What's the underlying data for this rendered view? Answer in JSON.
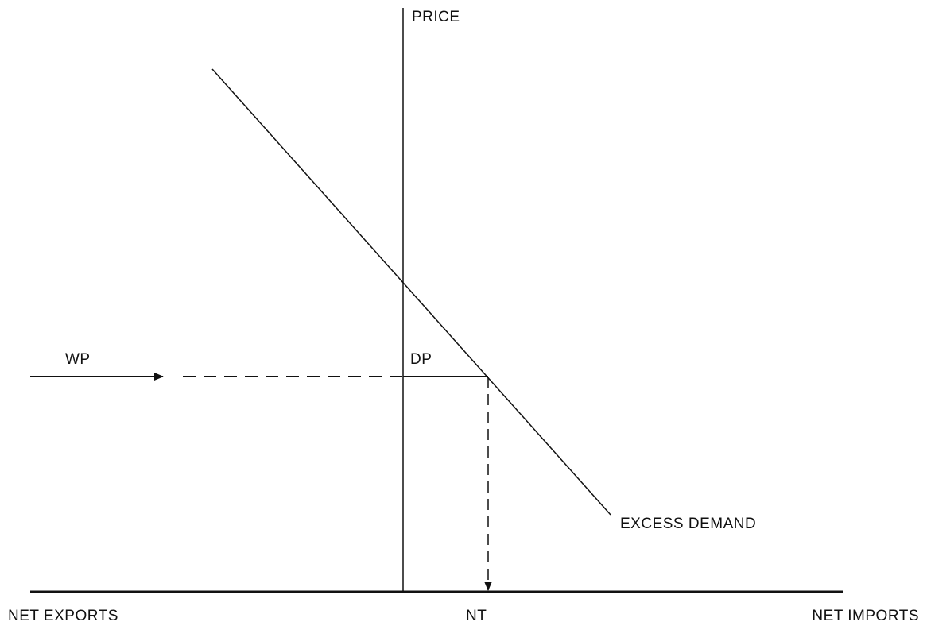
{
  "axes": {
    "y_label": "PRICE",
    "x_left_label": "NET EXPORTS",
    "x_right_label": "NET IMPORTS"
  },
  "labels": {
    "world_price": "WP",
    "domestic_price": "DP",
    "net_trade": "NT",
    "curve": "EXCESS DEMAND"
  }
}
